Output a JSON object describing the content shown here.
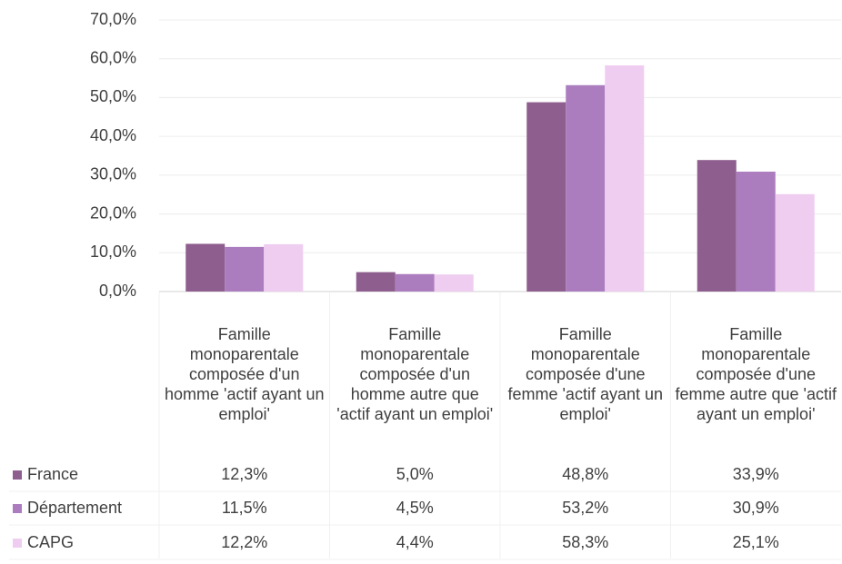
{
  "chart_data": {
    "type": "bar",
    "categories": [
      "Famille monoparentale composée d'un homme 'actif ayant un emploi'",
      "Famille monoparentale composée d'un homme autre que 'actif ayant un emploi'",
      "Famille monoparentale composée d'une femme 'actif ayant un emploi'",
      "Famille monoparentale composée d'une femme autre que 'actif ayant un emploi'"
    ],
    "series": [
      {
        "name": "France",
        "color": "#8e5e8e",
        "values": [
          12.3,
          5.0,
          48.8,
          33.9
        ],
        "value_labels": [
          "12,3%",
          "5,0%",
          "48,8%",
          "33,9%"
        ]
      },
      {
        "name": "Département",
        "color": "#ab7dbf",
        "values": [
          11.5,
          4.5,
          53.2,
          30.9
        ],
        "value_labels": [
          "11,5%",
          "4,5%",
          "53,2%",
          "30,9%"
        ]
      },
      {
        "name": "CAPG",
        "color": "#efcdf0",
        "values": [
          12.2,
          4.4,
          58.3,
          25.1
        ],
        "value_labels": [
          "12,2%",
          "4,4%",
          "58,3%",
          "25,1%"
        ]
      }
    ],
    "ylim": [
      0,
      70
    ],
    "yticks": [
      {
        "value": 0,
        "label": "0,0%"
      },
      {
        "value": 10,
        "label": "10,0%"
      },
      {
        "value": 20,
        "label": "20,0%"
      },
      {
        "value": 30,
        "label": "30,0%"
      },
      {
        "value": 40,
        "label": "40,0%"
      },
      {
        "value": 50,
        "label": "50,0%"
      },
      {
        "value": 60,
        "label": "60,0%"
      },
      {
        "value": 70,
        "label": "70,0%"
      }
    ],
    "grid": true
  }
}
